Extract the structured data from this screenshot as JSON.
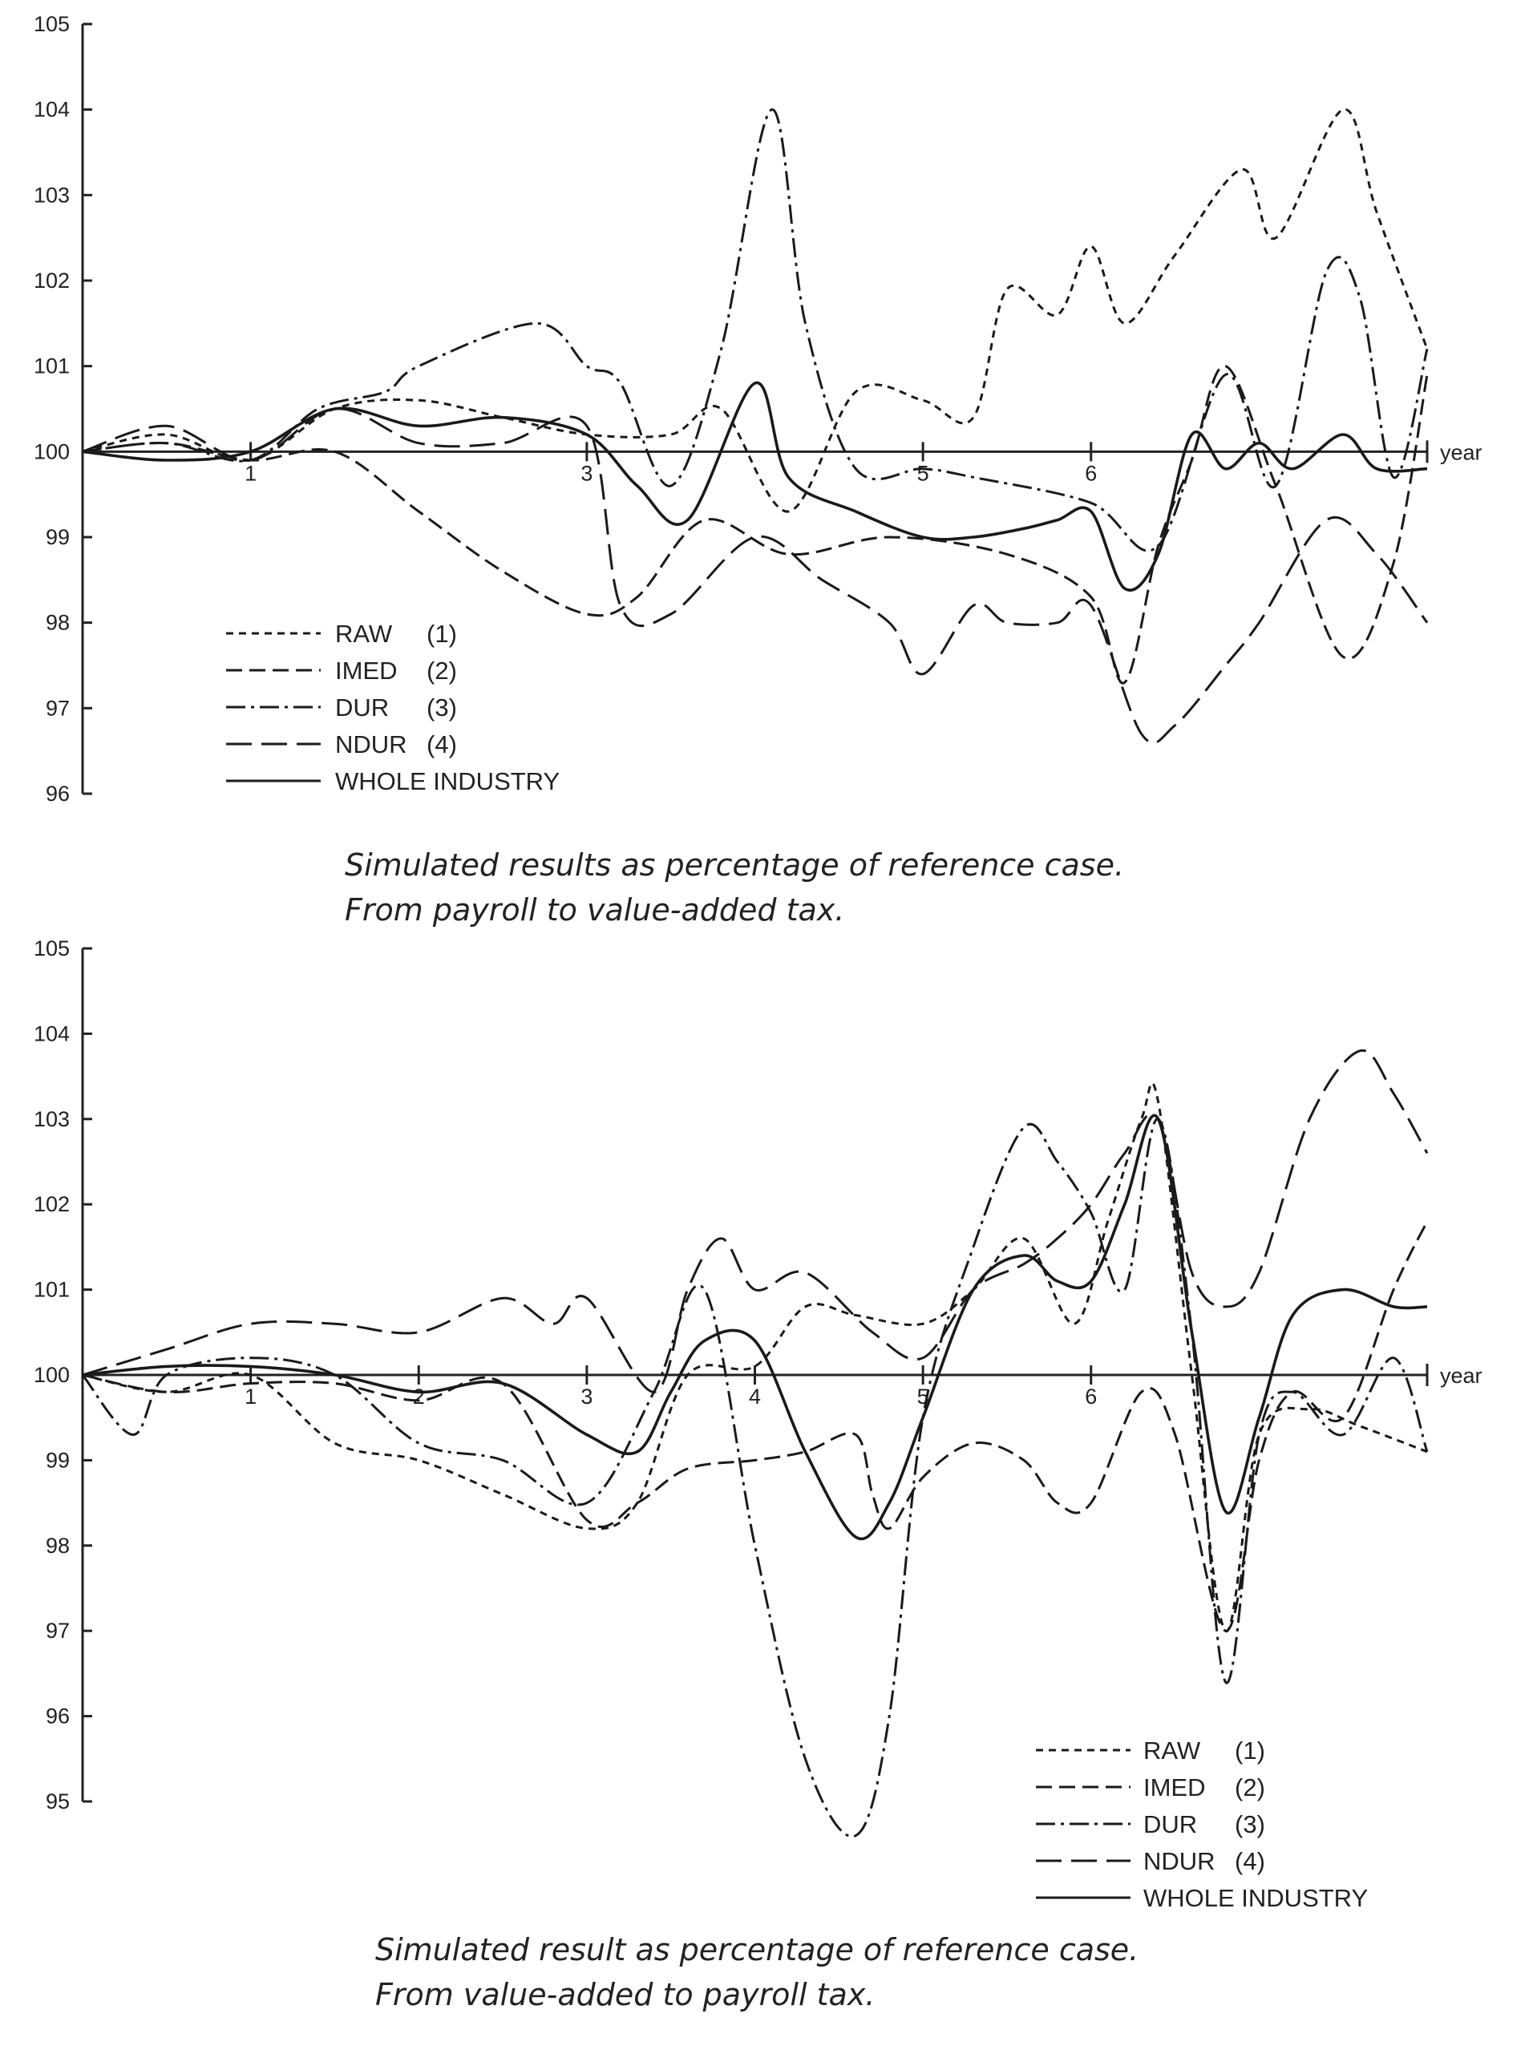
{
  "chart_data": [
    {
      "type": "line",
      "caption_lines": [
        "Simulated results as percentage of reference case.",
        "From payroll to value-added tax."
      ],
      "y_ticks": [
        "105",
        "104",
        "103",
        "102",
        "101",
        "100",
        "99",
        "98",
        "97",
        "96"
      ],
      "x_ticks": [
        "1",
        "3",
        "5",
        "6"
      ],
      "x_tick_values": [
        1,
        3,
        5,
        6
      ],
      "x_axis_label": "year",
      "ylim": [
        96,
        105
      ],
      "xlim": [
        0,
        8
      ],
      "grid": false,
      "legend_position": "bottom-left",
      "legend": [
        "RAW",
        "IMED",
        "DUR",
        "NDUR",
        "WHOLE INDUSTRY"
      ],
      "legend_numbers": [
        "(1)",
        "(2)",
        "(3)",
        "(4)",
        ""
      ],
      "series": [
        {
          "name": "RAW",
          "style": "short-dash",
          "x": [
            0,
            0.5,
            1.0,
            1.5,
            2.0,
            2.5,
            3.0,
            3.5,
            3.8,
            4.2,
            4.6,
            5.0,
            5.3,
            5.5,
            5.8,
            6.0,
            6.2,
            6.5,
            6.9,
            7.1,
            7.5,
            7.7,
            8.0
          ],
          "y": [
            100,
            100.2,
            99.9,
            100.5,
            100.6,
            100.4,
            100.2,
            100.2,
            100.5,
            99.3,
            100.7,
            100.6,
            100.4,
            101.9,
            101.6,
            102.4,
            101.5,
            102.3,
            103.3,
            102.5,
            104.0,
            102.8,
            101.2
          ]
        },
        {
          "name": "IMED",
          "style": "medium-dash",
          "x": [
            0,
            0.5,
            1.0,
            1.5,
            2.0,
            2.5,
            3.0,
            3.3,
            3.7,
            4.2,
            4.8,
            5.5,
            6.0,
            6.2,
            6.4,
            6.6,
            6.8,
            7.1,
            7.5,
            7.8,
            8.0
          ],
          "y": [
            100,
            100.1,
            99.9,
            100.0,
            99.3,
            98.6,
            98.1,
            98.3,
            99.2,
            98.8,
            99.0,
            98.8,
            98.3,
            97.3,
            98.9,
            99.9,
            101.0,
            99.6,
            97.6,
            98.7,
            100.9
          ]
        },
        {
          "name": "DUR",
          "style": "dash-dot",
          "x": [
            0,
            0.5,
            1.0,
            1.4,
            1.8,
            2.0,
            2.7,
            3.0,
            3.2,
            3.5,
            3.8,
            4.1,
            4.3,
            4.6,
            5.0,
            5.3,
            6.0,
            6.4,
            6.8,
            7.1,
            7.4,
            7.6,
            7.8,
            8.0
          ],
          "y": [
            100,
            100.1,
            99.9,
            100.5,
            100.7,
            101.0,
            101.5,
            101.0,
            100.8,
            99.6,
            101.2,
            104.0,
            101.5,
            99.8,
            99.8,
            99.7,
            99.4,
            98.9,
            100.9,
            99.6,
            102.1,
            101.8,
            99.7,
            101.2
          ]
        },
        {
          "name": "NDUR",
          "style": "long-dash",
          "x": [
            0,
            0.5,
            1.0,
            1.5,
            2.0,
            2.5,
            3.0,
            3.2,
            3.5,
            4.0,
            4.4,
            4.8,
            5.0,
            5.3,
            5.5,
            5.8,
            6.0,
            6.3,
            6.5,
            6.8,
            7.0,
            7.4,
            7.7,
            8.0
          ],
          "y": [
            100,
            100.3,
            99.9,
            100.5,
            100.1,
            100.1,
            100.3,
            98.2,
            98.1,
            99.0,
            98.5,
            98.0,
            97.4,
            98.2,
            98.0,
            98.0,
            98.2,
            96.7,
            96.8,
            97.5,
            98.0,
            99.2,
            98.8,
            98.0
          ]
        },
        {
          "name": "WHOLE INDUSTRY",
          "style": "solid",
          "x": [
            0,
            0.5,
            1.0,
            1.5,
            2.0,
            2.5,
            3.0,
            3.3,
            3.6,
            4.0,
            4.2,
            4.6,
            5.0,
            5.3,
            5.6,
            5.8,
            6.0,
            6.2,
            6.4,
            6.6,
            6.8,
            7.0,
            7.2,
            7.5,
            7.7,
            8.0
          ],
          "y": [
            100,
            99.9,
            100.0,
            100.5,
            100.3,
            100.4,
            100.2,
            99.6,
            99.2,
            100.8,
            99.7,
            99.3,
            99.0,
            99.0,
            99.1,
            99.2,
            99.3,
            98.4,
            98.8,
            100.2,
            99.8,
            100.1,
            99.8,
            100.2,
            99.8,
            99.8
          ]
        }
      ]
    },
    {
      "type": "line",
      "caption_lines": [
        "Simulated result as percentage of reference case.",
        "From value-added to payroll tax."
      ],
      "y_ticks": [
        "105",
        "104",
        "103",
        "102",
        "101",
        "100",
        "99",
        "98",
        "97",
        "96",
        "95"
      ],
      "x_ticks": [
        "1",
        "2",
        "3",
        "4",
        "5",
        "6"
      ],
      "x_tick_values": [
        1,
        2,
        3,
        4,
        5,
        6
      ],
      "x_axis_label": "year",
      "ylim": [
        95,
        105
      ],
      "xlim": [
        0,
        8
      ],
      "grid": false,
      "legend_position": "bottom-right",
      "legend": [
        "RAW",
        "IMED",
        "DUR",
        "NDUR",
        "WHOLE INDUSTRY"
      ],
      "legend_numbers": [
        "(1)",
        "(2)",
        "(3)",
        "(4)",
        ""
      ],
      "series": [
        {
          "name": "RAW",
          "style": "short-dash",
          "x": [
            0,
            0.5,
            1.0,
            1.5,
            2.0,
            2.5,
            3.0,
            3.3,
            3.6,
            4.0,
            4.3,
            4.6,
            5.0,
            5.3,
            5.6,
            5.9,
            6.1,
            6.3,
            6.4,
            6.6,
            6.8,
            7.0,
            7.3,
            7.6,
            8.0
          ],
          "y": [
            100,
            99.8,
            100.0,
            99.2,
            99.0,
            98.6,
            98.2,
            98.5,
            100.0,
            100.1,
            100.8,
            100.7,
            100.6,
            101.0,
            101.6,
            100.6,
            101.8,
            103.0,
            103.2,
            100.0,
            97.0,
            99.3,
            99.6,
            99.4,
            99.1
          ]
        },
        {
          "name": "IMED",
          "style": "medium-dash",
          "x": [
            0,
            0.5,
            1.0,
            1.5,
            2.0,
            2.5,
            3.0,
            3.3,
            3.6,
            4.0,
            4.3,
            4.6,
            4.7,
            4.8,
            5.0,
            5.3,
            5.6,
            5.8,
            6.0,
            6.3,
            6.5,
            6.8,
            7.0,
            7.2,
            7.5,
            7.8,
            8.0
          ],
          "y": [
            100,
            99.8,
            99.9,
            99.9,
            99.7,
            99.9,
            98.3,
            98.5,
            98.9,
            99.0,
            99.1,
            99.3,
            98.6,
            98.2,
            98.8,
            99.2,
            99.0,
            98.5,
            98.5,
            99.8,
            99.3,
            97.0,
            99.0,
            99.8,
            99.5,
            101.0,
            101.8
          ]
        },
        {
          "name": "DUR",
          "style": "dash-dot",
          "x": [
            0,
            0.3,
            0.5,
            1.0,
            1.5,
            2.0,
            2.5,
            3.0,
            3.4,
            3.7,
            4.0,
            4.3,
            4.6,
            4.8,
            5.0,
            5.3,
            5.6,
            5.8,
            6.0,
            6.2,
            6.4,
            6.6,
            6.8,
            7.0,
            7.2,
            7.5,
            7.8,
            8.0
          ],
          "y": [
            100,
            99.3,
            100.0,
            100.2,
            100.0,
            99.2,
            99.0,
            98.5,
            99.8,
            101.0,
            98.0,
            95.5,
            94.6,
            96.0,
            99.5,
            101.5,
            102.9,
            102.5,
            101.9,
            101.0,
            103.0,
            100.5,
            96.4,
            99.3,
            99.8,
            99.3,
            100.2,
            99.1
          ]
        },
        {
          "name": "NDUR",
          "style": "long-dash",
          "x": [
            0,
            0.5,
            1.0,
            1.5,
            2.0,
            2.5,
            2.8,
            3.0,
            3.4,
            3.6,
            3.8,
            4.0,
            4.3,
            4.7,
            5.0,
            5.3,
            5.6,
            5.8,
            6.0,
            6.2,
            6.4,
            6.6,
            6.8,
            7.0,
            7.3,
            7.6,
            7.8,
            8.0
          ],
          "y": [
            100,
            100.3,
            100.6,
            100.6,
            100.5,
            100.9,
            100.6,
            100.9,
            99.8,
            101.0,
            101.6,
            101.0,
            101.2,
            100.5,
            100.2,
            101.0,
            101.3,
            101.6,
            102.0,
            102.6,
            103.0,
            101.2,
            100.8,
            101.2,
            103.0,
            103.8,
            103.3,
            102.6
          ]
        },
        {
          "name": "WHOLE INDUSTRY",
          "style": "solid",
          "x": [
            0,
            0.5,
            1.0,
            1.5,
            2.0,
            2.5,
            3.0,
            3.3,
            3.5,
            3.7,
            4.0,
            4.3,
            4.6,
            4.8,
            5.0,
            5.3,
            5.6,
            5.8,
            6.0,
            6.2,
            6.4,
            6.6,
            6.8,
            7.0,
            7.2,
            7.5,
            7.8,
            8.0
          ],
          "y": [
            100,
            100.1,
            100.1,
            100.0,
            99.8,
            99.9,
            99.3,
            99.1,
            99.8,
            100.4,
            100.4,
            99.1,
            98.1,
            98.5,
            99.5,
            101.0,
            101.4,
            101.1,
            101.1,
            102.0,
            103.0,
            100.5,
            98.4,
            99.5,
            100.7,
            101.0,
            100.8,
            100.8
          ]
        }
      ]
    }
  ]
}
